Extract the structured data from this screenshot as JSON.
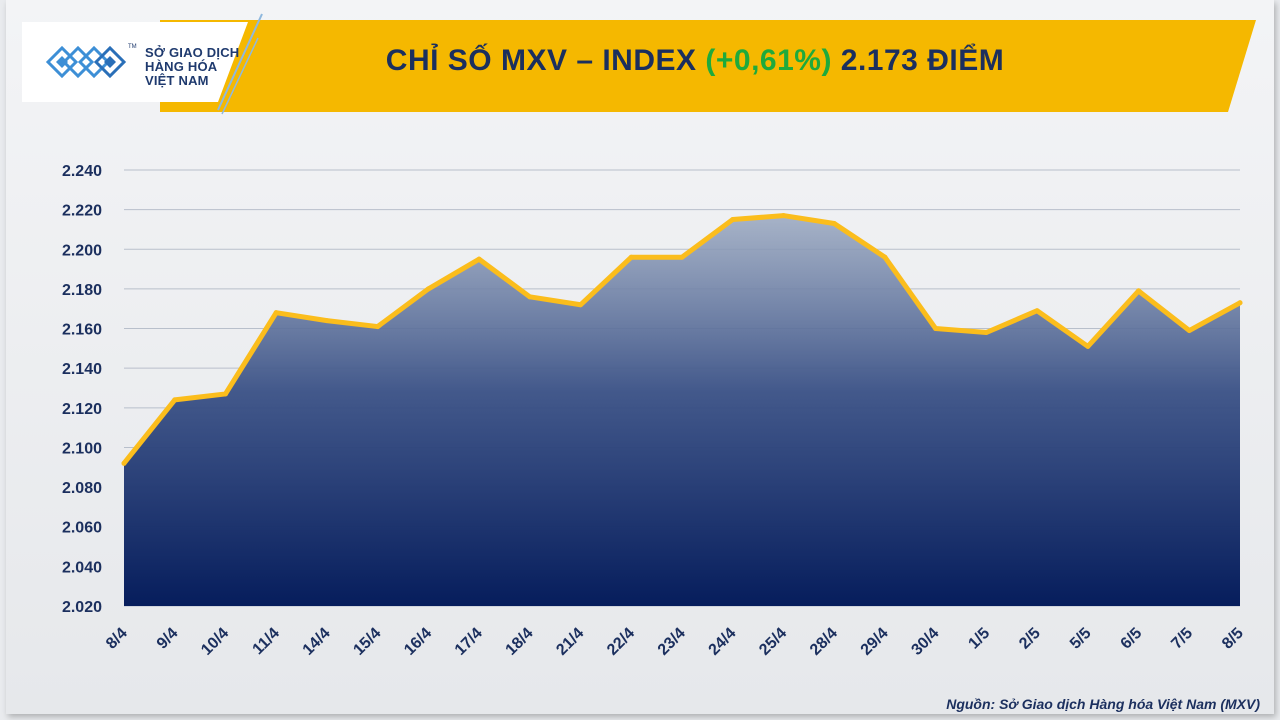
{
  "header": {
    "logo_line1": "SỞ GIAO DỊCH",
    "logo_line2": "HÀNG HÓA",
    "logo_line3": "VIỆT NAM",
    "logo_mark": "TM",
    "title_prefix": "CHỈ SỐ MXV – INDEX ",
    "title_change": "(+0,61%)",
    "title_suffix": " 2.173 ĐIỂM"
  },
  "colors": {
    "band": "#f5b800",
    "line": "#fbbd1c",
    "area_top": "#9aa8c0",
    "area_bottom": "#061d5c",
    "change": "#1faa3c",
    "text": "#1b2f5e"
  },
  "source": "Nguồn: Sở Giao dịch Hàng hóa Việt Nam (MXV)",
  "chart_data": {
    "type": "area",
    "title": "CHỈ SỐ MXV – INDEX (+0,61%) 2.173 ĐIỂM",
    "categories": [
      "8/4",
      "9/4",
      "10/4",
      "11/4",
      "14/4",
      "15/4",
      "16/4",
      "17/4",
      "18/4",
      "21/4",
      "22/4",
      "23/4",
      "24/4",
      "25/4",
      "28/4",
      "29/4",
      "30/4",
      "1/5",
      "2/5",
      "5/5",
      "6/5",
      "7/5",
      "8/5"
    ],
    "values": [
      2092,
      2124,
      2127,
      2168,
      2164,
      2161,
      2180,
      2195,
      2176,
      2172,
      2196,
      2196,
      2215,
      2217,
      2213,
      2196,
      2160,
      2158,
      2169,
      2151,
      2179,
      2159,
      2173
    ],
    "yticks": [
      "2.020",
      "2.040",
      "2.060",
      "2.080",
      "2.100",
      "2.120",
      "2.140",
      "2.160",
      "2.180",
      "2.200",
      "2.220",
      "2.240"
    ],
    "ylim": [
      2020,
      2240
    ],
    "grid": true,
    "legend": "none",
    "xlabel": "",
    "ylabel": ""
  }
}
